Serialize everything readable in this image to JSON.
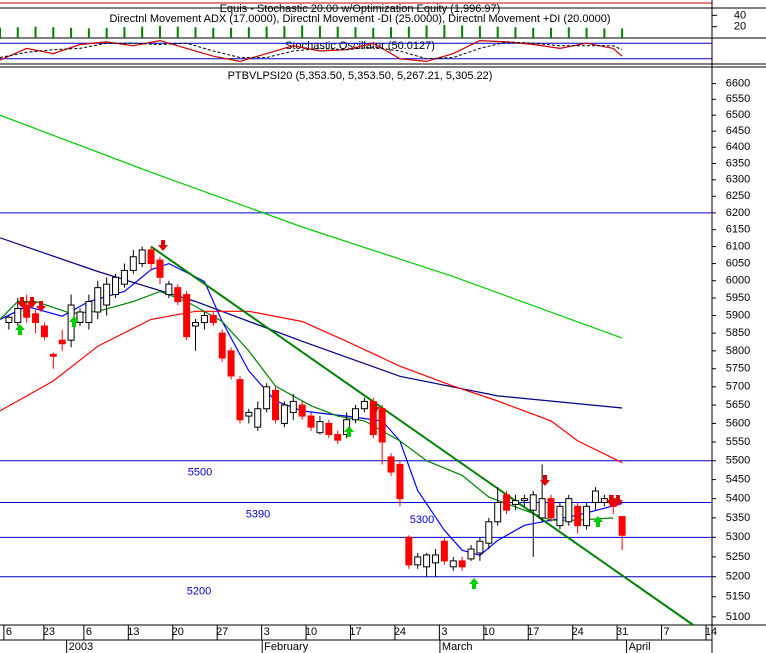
{
  "equity_panel": {
    "title": "Equis - Stochastic 20.00 w/Optimization Equity (1,996.97)"
  },
  "adx_panel": {
    "title": "Directnl Movement ADX (17.0000), Directnl Movement -DI (25.0000), Directnl Movement +DI (20.0000)",
    "ylim": [
      0,
      53
    ],
    "yticks": [
      20,
      40
    ],
    "color": "#008000",
    "x": [
      -3,
      -1,
      1,
      3,
      5,
      7,
      9,
      11,
      13,
      15,
      17,
      19,
      21,
      23,
      25,
      27,
      29,
      31,
      33,
      35,
      37,
      39,
      41,
      43,
      45,
      47,
      49,
      51,
      53,
      55,
      57,
      59,
      61,
      63,
      65,
      67
    ],
    "values": [
      18,
      19,
      20,
      19,
      18,
      17,
      18,
      19,
      20,
      21,
      20,
      19,
      18,
      18,
      19,
      20,
      21,
      22,
      21,
      20,
      19,
      18,
      19,
      20,
      22,
      23,
      22,
      21,
      20,
      19,
      18,
      18,
      19,
      18,
      17,
      17
    ]
  },
  "stochastic_panel": {
    "title": "Stochastic Oscillator (50.0127)",
    "ylim": [
      0,
      100
    ],
    "levels": [
      80,
      20
    ],
    "x": [
      -3,
      0,
      3,
      6,
      9,
      12,
      15,
      18,
      21,
      24,
      27,
      30,
      33,
      36,
      39,
      42,
      45,
      48,
      51,
      54,
      57,
      60,
      63,
      66,
      67
    ],
    "k": [
      15,
      60,
      40,
      75,
      85,
      70,
      90,
      60,
      30,
      10,
      40,
      70,
      50,
      55,
      80,
      20,
      10,
      40,
      90,
      85,
      75,
      60,
      80,
      60,
      30
    ],
    "d": [
      25,
      45,
      55,
      60,
      80,
      80,
      75,
      80,
      50,
      25,
      25,
      50,
      60,
      55,
      65,
      50,
      20,
      25,
      60,
      85,
      80,
      70,
      70,
      70,
      55
    ]
  },
  "chart_data": {
    "type": "candlestick",
    "title": "PTBVLPSI20 (5,353.50, 5,353.50, 5,267.21, 5,305.22)",
    "x": [
      -2,
      -1,
      0,
      1,
      2,
      3,
      4,
      5,
      6,
      7,
      8,
      9,
      10,
      11,
      12,
      13,
      14,
      15,
      16,
      17,
      18,
      19,
      20,
      21,
      22,
      23,
      24,
      25,
      26,
      27,
      28,
      29,
      30,
      31,
      32,
      33,
      34,
      35,
      36,
      37,
      38,
      39,
      40,
      41,
      42,
      43,
      44,
      45,
      46,
      47,
      48,
      49,
      50,
      51,
      52,
      53,
      54,
      55,
      56,
      57,
      58,
      59,
      60,
      61,
      62,
      63,
      64,
      65,
      66,
      67
    ],
    "open": [
      5880,
      5880,
      5930,
      5905,
      5870,
      5790,
      5830,
      5830,
      5880,
      5880,
      5910,
      5930,
      5960,
      5990,
      6030,
      6050,
      6090,
      6060,
      5960,
      5980,
      5960,
      5870,
      5880,
      5900,
      5850,
      5800,
      5720,
      5620,
      5590,
      5640,
      5690,
      5600,
      5630,
      5650,
      5620,
      5575,
      5600,
      5570,
      5570,
      5610,
      5640,
      5660,
      5640,
      5510,
      5490,
      5300,
      5230,
      5225,
      5235,
      5290,
      5225,
      5240,
      5245,
      5260,
      5285,
      5340,
      5410,
      5385,
      5395,
      5370,
      5350,
      5400,
      5330,
      5340,
      5380,
      5330,
      5390,
      5390,
      5400,
      5353.5
    ],
    "high": [
      5900,
      5950,
      5960,
      5915,
      5880,
      5795,
      5860,
      5960,
      5920,
      5960,
      6000,
      6010,
      6020,
      6050,
      6090,
      6100,
      6100,
      6070,
      6000,
      5990,
      5970,
      5890,
      5910,
      5910,
      5860,
      5810,
      5730,
      5640,
      5660,
      5710,
      5700,
      5660,
      5680,
      5660,
      5630,
      5620,
      5610,
      5580,
      5630,
      5650,
      5670,
      5670,
      5650,
      5520,
      5500,
      5305,
      5260,
      5260,
      5270,
      5300,
      5250,
      5250,
      5280,
      5300,
      5350,
      5430,
      5420,
      5410,
      5410,
      5420,
      5490,
      5410,
      5390,
      5410,
      5390,
      5390,
      5430,
      5410,
      5410,
      5353.5
    ],
    "low": [
      5860,
      5870,
      5880,
      5850,
      5830,
      5750,
      5800,
      5810,
      5870,
      5860,
      5890,
      5900,
      5950,
      5980,
      6020,
      6040,
      6030,
      5990,
      5950,
      5930,
      5830,
      5800,
      5860,
      5870,
      5770,
      5720,
      5600,
      5600,
      5580,
      5630,
      5600,
      5590,
      5610,
      5610,
      5580,
      5570,
      5560,
      5545,
      5560,
      5600,
      5630,
      5560,
      5490,
      5460,
      5380,
      5220,
      5220,
      5200,
      5200,
      5230,
      5215,
      5215,
      5240,
      5240,
      5270,
      5330,
      5360,
      5370,
      5380,
      5250,
      5340,
      5340,
      5320,
      5330,
      5310,
      5320,
      5370,
      5380,
      5360,
      5267.21
    ],
    "close": [
      5895,
      5920,
      5895,
      5880,
      5840,
      5785,
      5820,
      5930,
      5910,
      5940,
      5980,
      5990,
      6010,
      6030,
      6070,
      6090,
      6050,
      6010,
      5990,
      5940,
      5840,
      5880,
      5900,
      5880,
      5780,
      5730,
      5610,
      5630,
      5640,
      5700,
      5610,
      5650,
      5660,
      5620,
      5590,
      5605,
      5570,
      5555,
      5610,
      5640,
      5660,
      5570,
      5550,
      5470,
      5400,
      5230,
      5250,
      5255,
      5255,
      5240,
      5240,
      5225,
      5270,
      5290,
      5340,
      5390,
      5370,
      5395,
      5400,
      5410,
      5400,
      5350,
      5380,
      5400,
      5330,
      5380,
      5420,
      5400,
      5380,
      5305.22
    ],
    "up_color": "#ffffff",
    "down_color": "#ff0000",
    "ylim": [
      5080,
      6650
    ],
    "log_scale": true,
    "yticks": [
      5100,
      5150,
      5200,
      5250,
      5300,
      5350,
      5400,
      5450,
      5500,
      5550,
      5600,
      5650,
      5700,
      5750,
      5800,
      5850,
      5900,
      5950,
      6000,
      6050,
      6100,
      6150,
      6200,
      6250,
      6300,
      6350,
      6400,
      6450,
      6500,
      6550,
      6600
    ],
    "xlim": [
      -3,
      77
    ],
    "xticks": [
      {
        "value": -2,
        "label": "6"
      },
      {
        "value": 2.5,
        "label": "23"
      },
      {
        "value": 7,
        "label": "6"
      },
      {
        "value": 12,
        "label": "13"
      },
      {
        "value": 17,
        "label": "20"
      },
      {
        "value": 22,
        "label": "27"
      },
      {
        "value": 27,
        "label": "3"
      },
      {
        "value": 32,
        "label": "10"
      },
      {
        "value": 37,
        "label": "17"
      },
      {
        "value": 42,
        "label": "24"
      },
      {
        "value": 47,
        "label": "3"
      },
      {
        "value": 52,
        "label": "10"
      },
      {
        "value": 57,
        "label": "17"
      },
      {
        "value": 62,
        "label": "24"
      },
      {
        "value": 67,
        "label": "31"
      },
      {
        "value": 72,
        "label": "7"
      },
      {
        "value": 77,
        "label": "14"
      }
    ],
    "months": [
      {
        "value": 4.5,
        "label": "2003"
      },
      {
        "value": 26.5,
        "label": "February"
      },
      {
        "value": 46.5,
        "label": "March"
      },
      {
        "value": 67.5,
        "label": "April"
      }
    ],
    "levels": [
      6200,
      5500,
      5390,
      5300,
      5200
    ],
    "level_color": "#0000cc",
    "lines": [
      {
        "color": "#00cc00",
        "x": [
          -3,
          14,
          31,
          48,
          67
        ],
        "values": [
          6500,
          6323,
          6158,
          6012,
          5836
        ]
      },
      {
        "color": "#000080",
        "x": [
          -3,
          8,
          19,
          31,
          42,
          53,
          67
        ],
        "values": [
          6126,
          6027,
          5940,
          5827,
          5729,
          5675,
          5642
        ]
      },
      {
        "color": "#ff0000",
        "x": [
          -3,
          3,
          8,
          14,
          19,
          25,
          31,
          36,
          42,
          48,
          53,
          59,
          62,
          67
        ],
        "values": [
          5634,
          5716,
          5813,
          5889,
          5912,
          5912,
          5883,
          5827,
          5757,
          5702,
          5661,
          5607,
          5553,
          5495
        ]
      },
      {
        "color": "#0000ff",
        "x": [
          -3,
          0,
          4,
          7,
          11,
          14,
          16,
          20,
          22,
          25,
          28,
          31,
          33,
          36,
          40,
          42,
          44,
          47,
          49,
          51,
          53,
          56,
          59,
          62,
          67
        ],
        "values": [
          5889,
          5926,
          5898,
          5940,
          5969,
          6032,
          6050,
          5998,
          5883,
          5744,
          5661,
          5634,
          5628,
          5620,
          5607,
          5553,
          5421,
          5318,
          5267,
          5254,
          5292,
          5331,
          5344,
          5357,
          5387
        ]
      },
      {
        "color": "#008000",
        "x": [
          -3,
          -1,
          1,
          5,
          8,
          12,
          15,
          18,
          22,
          25,
          28,
          32,
          35,
          38,
          42,
          45,
          49,
          52,
          56,
          59,
          62,
          66
        ],
        "values": [
          5889,
          5940,
          5940,
          5906,
          5912,
          5940,
          5969,
          5940,
          5883,
          5800,
          5702,
          5648,
          5620,
          5607,
          5553,
          5500,
          5461,
          5404,
          5370,
          5344,
          5344,
          5350
        ]
      },
      {
        "color": "#008000",
        "x": [
          14,
          75
        ],
        "values": [
          6100,
          5080
        ]
      }
    ]
  }
}
